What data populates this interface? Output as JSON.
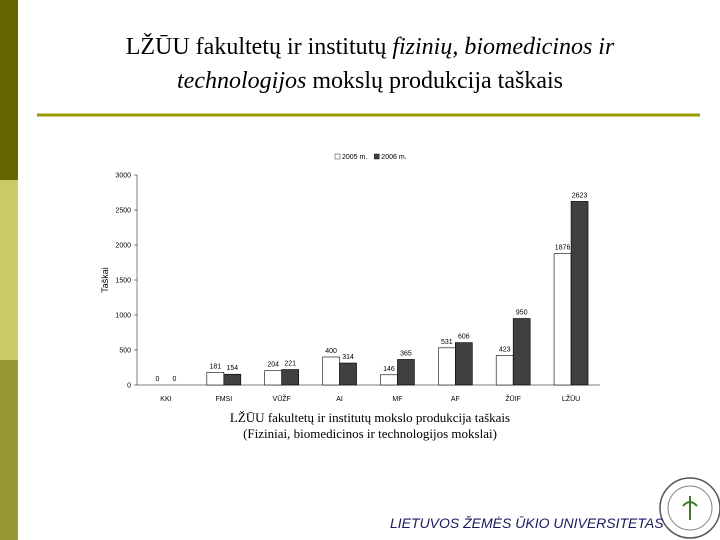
{
  "slide": {
    "title": [
      [
        {
          "text": "LŽŪU fakultetų ir institutų ",
          "italic": false
        },
        {
          "text": "fizinių, biomedicinos ir",
          "italic": true
        }
      ],
      [
        {
          "text": "technologijos",
          "italic": true
        },
        {
          "text": " mokslų produkcija taškais",
          "italic": false
        }
      ]
    ],
    "caption": [
      "LŽŪU fakultetų ir institutų mokslo produkcija taškais",
      "(Fiziniai, biomedicinos ir technologijos mokslai)"
    ],
    "footer": "LIETUVOS ŽEMĖS ŪKIO UNIVERSITETAS"
  },
  "chart_data": {
    "type": "bar",
    "ylabel": "Taškai",
    "categories": [
      "KKI",
      "FMSI",
      "VŪŽF",
      "AI",
      "MF",
      "AF",
      "ŽŪIF",
      "LŽŪU"
    ],
    "series": [
      {
        "name": "2005 m.",
        "color": "#ffffff",
        "values": [
          0,
          181,
          204,
          400,
          146,
          531,
          423,
          1876
        ]
      },
      {
        "name": "2006 m.",
        "color": "#404040",
        "values": [
          0,
          154,
          221,
          314,
          365,
          606,
          950,
          2623
        ]
      }
    ],
    "ylim": [
      0,
      3000
    ],
    "yticks": [
      0,
      500,
      1000,
      1500,
      2000,
      2500,
      3000
    ]
  }
}
